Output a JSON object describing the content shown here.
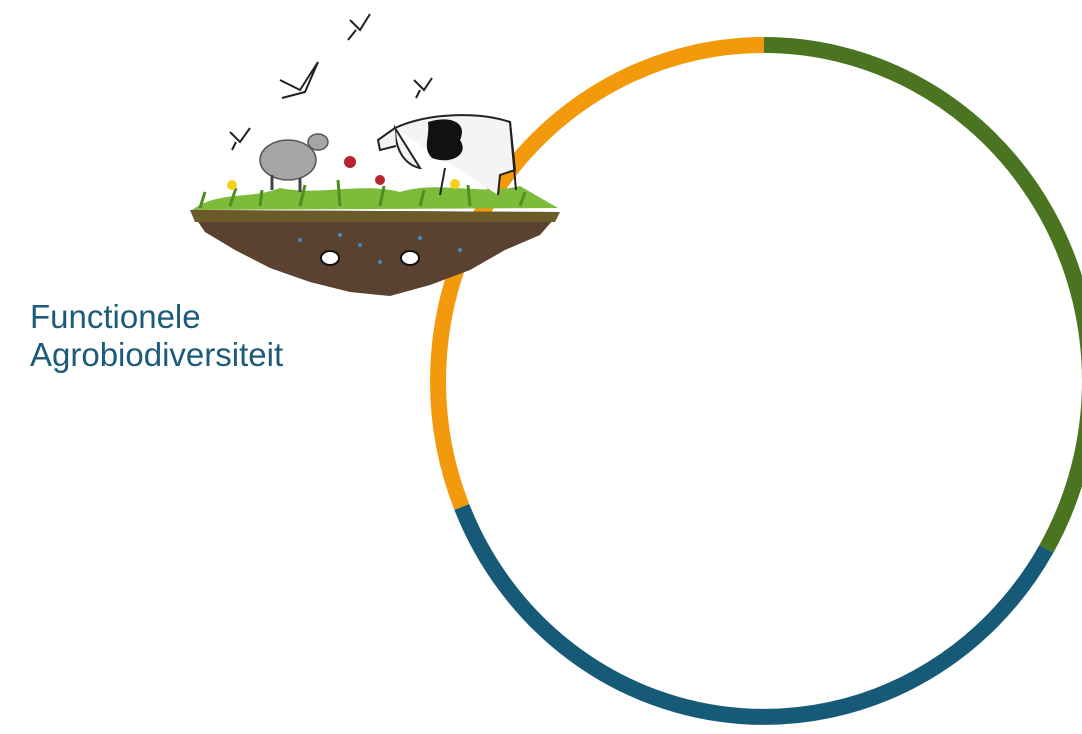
{
  "header": {
    "title": [
      "Functionele",
      "Agrobiodiversiteit"
    ]
  }
}
